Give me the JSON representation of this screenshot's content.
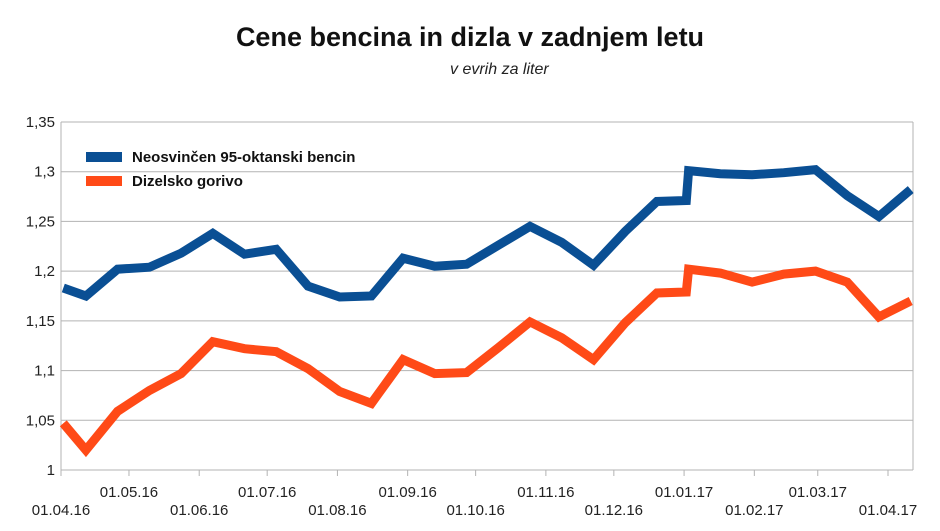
{
  "chart_data": {
    "type": "line",
    "title": "Cene bencina in dizla v zadnjem letu",
    "subtitle": "v evrih za liter",
    "xlabel": "",
    "ylabel": "",
    "x_axis_type": "date",
    "xlim": [
      "01.04.16",
      "13.04.17"
    ],
    "ylim": [
      1,
      1.35
    ],
    "y_ticks": [
      "1",
      "1,05",
      "1,1",
      "1,15",
      "1,2",
      "1,25",
      "1,3",
      "1,35"
    ],
    "x_ticks": [
      "01.04.16",
      "01.05.16",
      "01.06.16",
      "01.07.16",
      "01.08.16",
      "01.09.16",
      "01.10.16",
      "01.11.16",
      "01.12.16",
      "01.01.17",
      "01.02.17",
      "01.03.17",
      "01.04.17"
    ],
    "grid": "horizontal",
    "legend_position": "top-left",
    "x": [
      "02.04.16",
      "12.04.16",
      "26.04.16",
      "10.05.16",
      "24.05.16",
      "07.06.16",
      "21.06.16",
      "05.07.16",
      "19.07.16",
      "02.08.16",
      "16.08.16",
      "30.08.16",
      "13.09.16",
      "27.09.16",
      "11.10.16",
      "25.10.16",
      "08.11.16",
      "22.11.16",
      "06.12.16",
      "20.12.16",
      "02.01.17",
      "03.01.17",
      "17.01.17",
      "31.01.17",
      "14.02.17",
      "28.02.17",
      "14.03.17",
      "28.03.17",
      "11.04.17"
    ],
    "series": [
      {
        "name": "Neosvinčen 95-oktanski bencin",
        "color": "#0a4f94",
        "values": [
          1.183,
          1.175,
          1.202,
          1.204,
          1.218,
          1.238,
          1.217,
          1.222,
          1.185,
          1.174,
          1.175,
          1.213,
          1.205,
          1.207,
          1.226,
          1.245,
          1.229,
          1.206,
          1.24,
          1.27,
          1.271,
          1.301,
          1.298,
          1.297,
          1.299,
          1.302,
          1.276,
          1.255,
          1.282
        ]
      },
      {
        "name": "Dizelsko gorivo",
        "color": "#ff4a17",
        "values": [
          1.047,
          1.02,
          1.059,
          1.08,
          1.097,
          1.129,
          1.122,
          1.119,
          1.102,
          1.079,
          1.067,
          1.111,
          1.097,
          1.098,
          1.123,
          1.149,
          1.133,
          1.111,
          1.148,
          1.178,
          1.179,
          1.202,
          1.198,
          1.189,
          1.197,
          1.2,
          1.189,
          1.154,
          1.17
        ]
      }
    ]
  }
}
